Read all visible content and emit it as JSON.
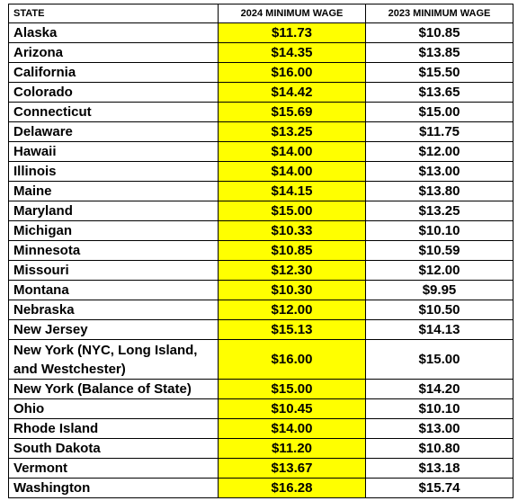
{
  "headers": {
    "state": "STATE",
    "wage_2024": "2024 MINIMUM WAGE",
    "wage_2023": "2023 MINIMUM WAGE"
  },
  "rows": [
    {
      "state": "Alaska",
      "wage_2024": "$11.73",
      "wage_2023": "$10.85"
    },
    {
      "state": "Arizona",
      "wage_2024": "$14.35",
      "wage_2023": "$13.85"
    },
    {
      "state": "California",
      "wage_2024": "$16.00",
      "wage_2023": "$15.50"
    },
    {
      "state": "Colorado",
      "wage_2024": "$14.42",
      "wage_2023": "$13.65"
    },
    {
      "state": "Connecticut",
      "wage_2024": "$15.69",
      "wage_2023": "$15.00"
    },
    {
      "state": "Delaware",
      "wage_2024": "$13.25",
      "wage_2023": "$11.75"
    },
    {
      "state": "Hawaii",
      "wage_2024": "$14.00",
      "wage_2023": "$12.00"
    },
    {
      "state": "Illinois",
      "wage_2024": "$14.00",
      "wage_2023": "$13.00"
    },
    {
      "state": "Maine",
      "wage_2024": "$14.15",
      "wage_2023": "$13.80"
    },
    {
      "state": "Maryland",
      "wage_2024": "$15.00",
      "wage_2023": "$13.25"
    },
    {
      "state": "Michigan",
      "wage_2024": "$10.33",
      "wage_2023": "$10.10"
    },
    {
      "state": "Minnesota",
      "wage_2024": "$10.85",
      "wage_2023": "$10.59"
    },
    {
      "state": "Missouri",
      "wage_2024": "$12.30",
      "wage_2023": "$12.00"
    },
    {
      "state": "Montana",
      "wage_2024": "$10.30",
      "wage_2023": "$9.95"
    },
    {
      "state": "Nebraska",
      "wage_2024": "$12.00",
      "wage_2023": "$10.50"
    },
    {
      "state": "New Jersey",
      "wage_2024": "$15.13",
      "wage_2023": "$14.13"
    },
    {
      "state": "New York (NYC, Long Island, and Westchester)",
      "wage_2024": "$16.00",
      "wage_2023": "$15.00"
    },
    {
      "state": "New York (Balance of State)",
      "wage_2024": "$15.00",
      "wage_2023": "$14.20"
    },
    {
      "state": "Ohio",
      "wage_2024": "$10.45",
      "wage_2023": "$10.10"
    },
    {
      "state": "Rhode Island",
      "wage_2024": "$14.00",
      "wage_2023": "$13.00"
    },
    {
      "state": "South Dakota",
      "wage_2024": "$11.20",
      "wage_2023": "$10.80"
    },
    {
      "state": "Vermont",
      "wage_2024": "$13.67",
      "wage_2023": "$13.18"
    },
    {
      "state": "Washington",
      "wage_2024": "$16.28",
      "wage_2023": "$15.74"
    }
  ],
  "colors": {
    "highlight": "#ffff00",
    "border": "#000000",
    "text": "#000000"
  }
}
